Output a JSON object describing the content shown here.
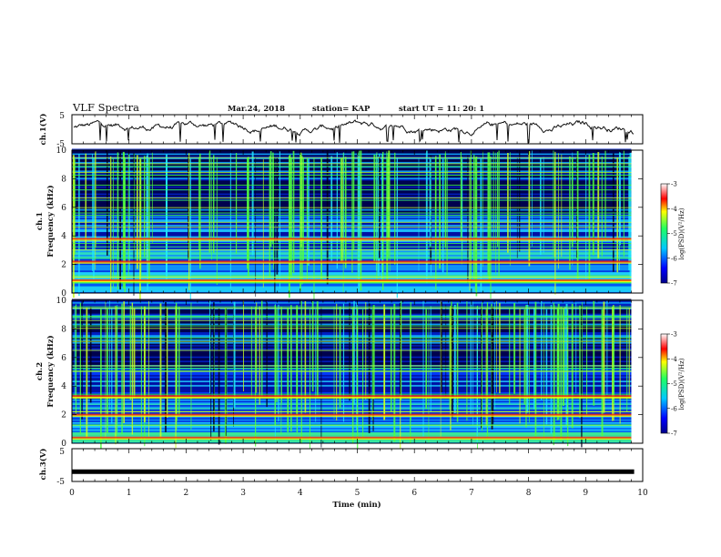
{
  "header": {
    "title": "VLF Spectra",
    "date": "Mar.24, 2018",
    "station": "station= KAP",
    "start": "start  UT  =   11: 20: 1"
  },
  "chart_data": [
    {
      "type": "line",
      "id": "ch1_waveform",
      "ylabel": "ch.1(V)",
      "ylim": [
        -5,
        5
      ],
      "yticks": [
        "5",
        "-5"
      ],
      "xlim": [
        0,
        10
      ],
      "note": "noisy waveform, roughly 0 to 1 V baseline with dips toward -5"
    },
    {
      "type": "heatmap",
      "id": "ch1_spectrogram",
      "ylabel": "ch.1\nFrequency (kHz)",
      "ylim": [
        0,
        10
      ],
      "yticks": [
        "0",
        "2",
        "4",
        "6",
        "8",
        "10"
      ],
      "xlim": [
        0,
        9.8
      ],
      "strong_lines_khz": [
        0.9,
        2.2,
        3.8
      ],
      "colorbar": {
        "label": "log(PSD)(V²/Hz)",
        "min": -7,
        "max": -3,
        "ticks": [
          "-3",
          "-4",
          "-5",
          "-6",
          "-7"
        ]
      }
    },
    {
      "type": "heatmap",
      "id": "ch2_spectrogram",
      "ylabel": "ch.2\nFrequency (kHz)",
      "ylim": [
        0,
        10
      ],
      "yticks": [
        "0",
        "2",
        "4",
        "6",
        "8",
        "10"
      ],
      "xlim": [
        0,
        9.8
      ],
      "strong_lines_khz": [
        0.4,
        2.0,
        3.3
      ],
      "colorbar": {
        "label": "log(PSD)(V²/Hz)",
        "min": -7,
        "max": -3,
        "ticks": [
          "-3",
          "-4",
          "-5",
          "-6",
          "-7"
        ]
      }
    },
    {
      "type": "line",
      "id": "ch3_waveform",
      "ylabel": "ch.3(V)",
      "ylim": [
        -5,
        5
      ],
      "yticks": [
        "5",
        "-5"
      ],
      "xlim": [
        0,
        10
      ],
      "constant_value": -2
    }
  ],
  "xaxis": {
    "label": "Time  (min)",
    "ticks": [
      "0",
      "1",
      "2",
      "3",
      "4",
      "5",
      "6",
      "7",
      "8",
      "9",
      "10"
    ]
  },
  "colors": {
    "waveform": "#111111",
    "axis": "#000000"
  }
}
